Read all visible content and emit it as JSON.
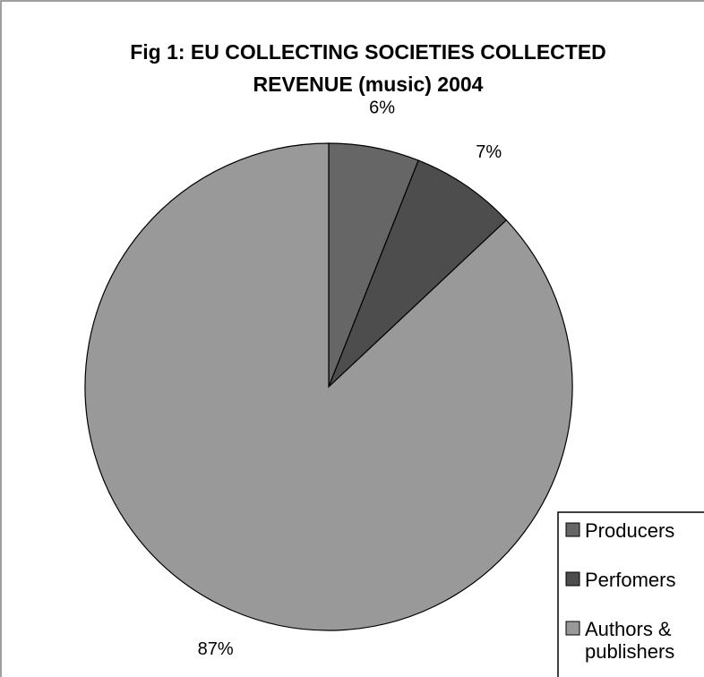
{
  "chart_data": {
    "type": "pie",
    "title": "Fig 1: EU COLLECTING SOCIETIES COLLECTED REVENUE (music)  2004",
    "title_lines": [
      "Fig 1: EU COLLECTING SOCIETIES COLLECTED",
      "REVENUE (music)  2004"
    ],
    "start_angle_deg": 0,
    "direction": "clockwise",
    "slices": [
      {
        "legend_lines": [
          "Producers"
        ],
        "value": 6,
        "label": "6%",
        "color": "#666666"
      },
      {
        "legend_lines": [
          "Perfomers"
        ],
        "value": 7,
        "label": "7%",
        "color": "#4d4d4d"
      },
      {
        "legend_lines": [
          "Authors &",
          "publishers"
        ],
        "value": 87,
        "label": "87%",
        "color": "#999999"
      }
    ],
    "legend_position": "right",
    "colors": {
      "background": "#ffffff",
      "outline": "#000000",
      "frame": "#808080"
    }
  }
}
